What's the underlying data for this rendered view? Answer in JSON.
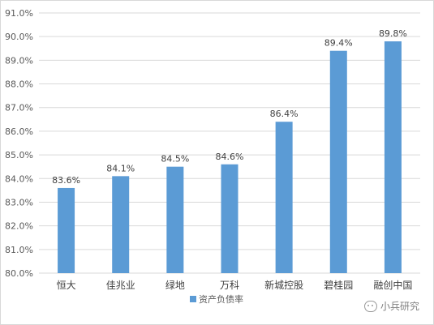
{
  "chart_data": {
    "type": "bar",
    "categories": [
      "恒大",
      "佳兆业",
      "绿地",
      "万科",
      "新城控股",
      "碧桂园",
      "融创中国"
    ],
    "series": [
      {
        "name": "资产负债率",
        "values": [
          83.6,
          84.1,
          84.5,
          84.6,
          86.4,
          89.4,
          89.8
        ],
        "color": "#5b9bd5"
      }
    ],
    "data_labels": [
      "83.6%",
      "84.1%",
      "84.5%",
      "84.6%",
      "86.4%",
      "89.4%",
      "89.8%"
    ],
    "y_ticks": [
      80,
      81,
      82,
      83,
      84,
      85,
      86,
      87,
      88,
      89,
      90,
      91
    ],
    "y_tick_labels": [
      "80.0%",
      "81.0%",
      "82.0%",
      "83.0%",
      "84.0%",
      "85.0%",
      "86.0%",
      "87.0%",
      "88.0%",
      "89.0%",
      "90.0%",
      "91.0%"
    ],
    "ylim": [
      80,
      91
    ],
    "grid": true,
    "legend_position": "bottom",
    "title": "",
    "xlabel": "",
    "ylabel": ""
  },
  "watermark": {
    "text": "小兵研究",
    "icon": "wechat-icon"
  }
}
